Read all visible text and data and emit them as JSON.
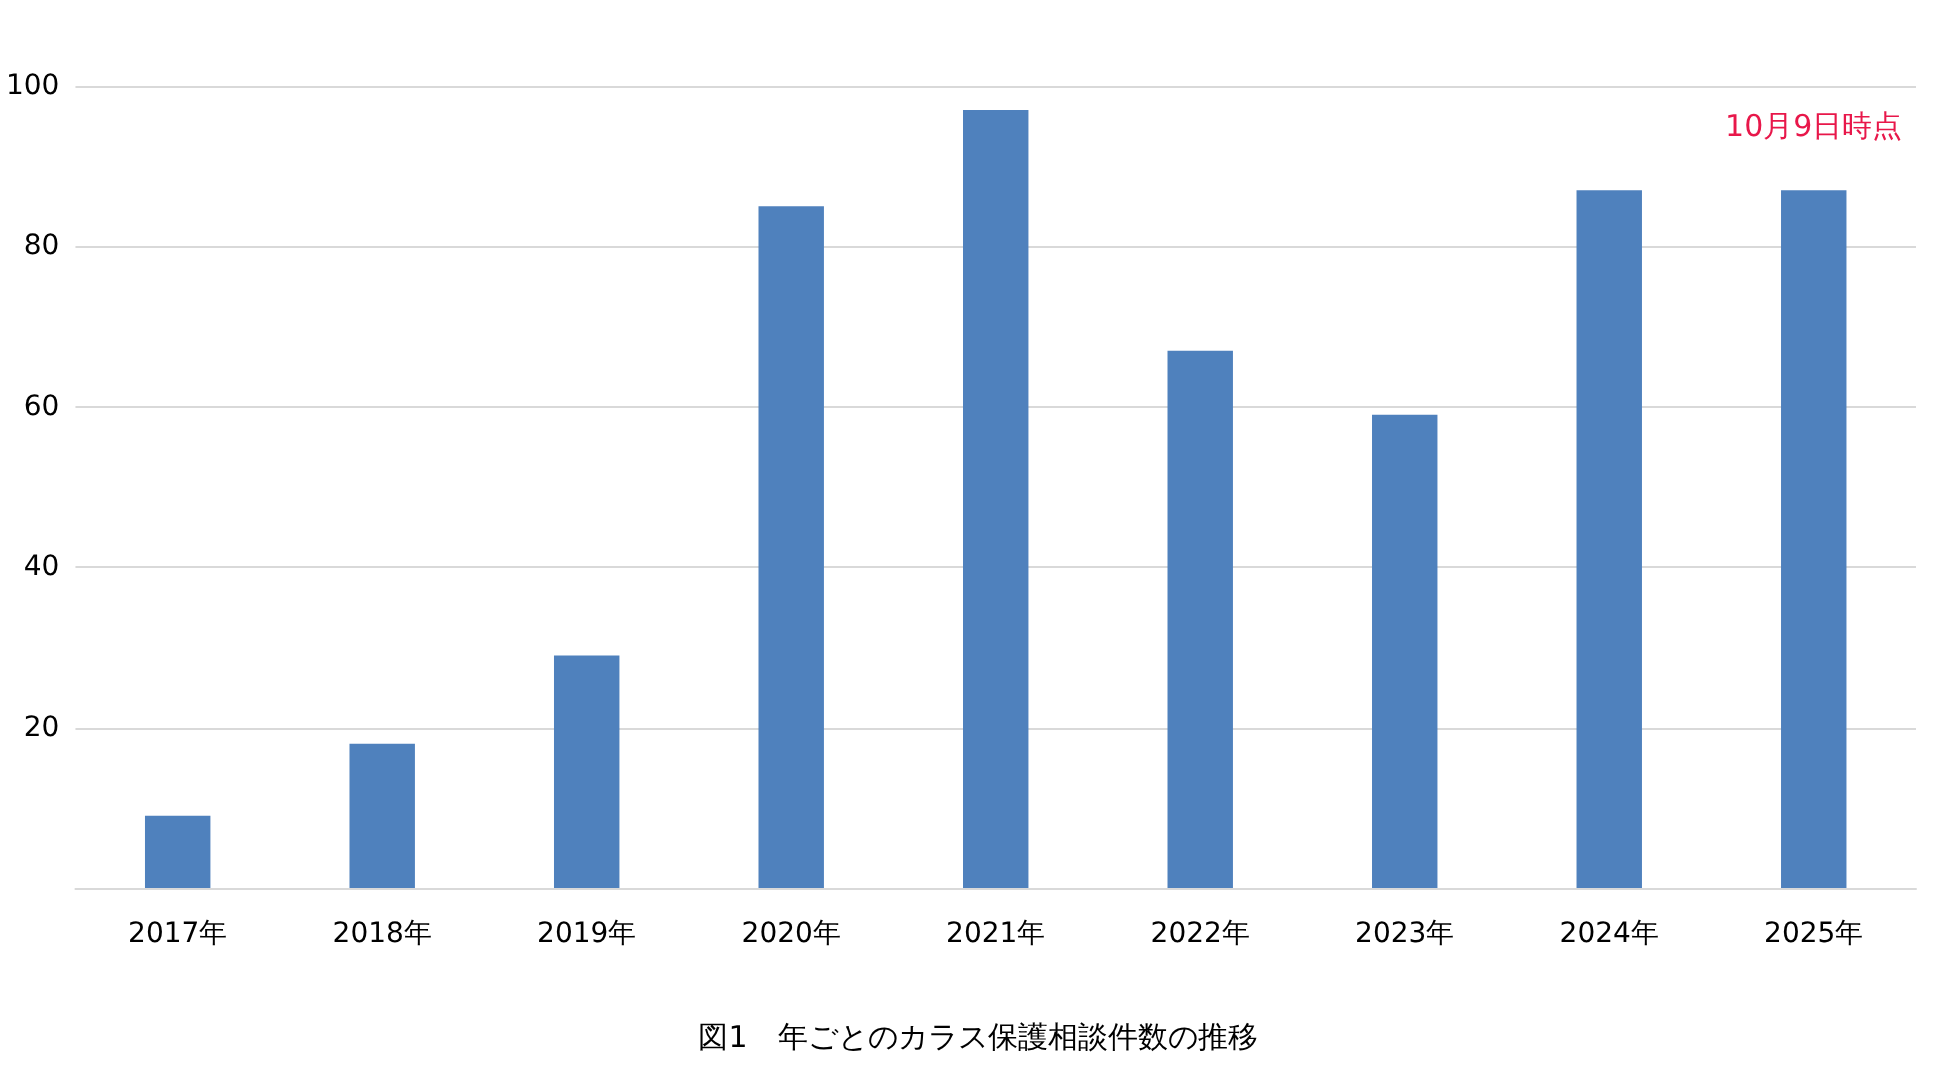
{
  "chart_data": {
    "type": "bar",
    "title": "図1　年ごとのカラス保護相談件数の推移",
    "categories": [
      "2017年",
      "2018年",
      "2019年",
      "2020年",
      "2021年",
      "2022年",
      "2023年",
      "2024年",
      "2025年"
    ],
    "values": [
      9,
      18,
      29,
      85,
      97,
      67,
      59,
      87,
      87
    ],
    "color": "#4f81bd",
    "ylim": [
      0,
      100
    ],
    "yticks": [
      {
        "value": 0,
        "label": null
      },
      20,
      40,
      60,
      80,
      100
    ],
    "grid": "y",
    "annotations": [
      {
        "text": "10月9日時点",
        "x": "2025年",
        "y": 87
      }
    ]
  }
}
